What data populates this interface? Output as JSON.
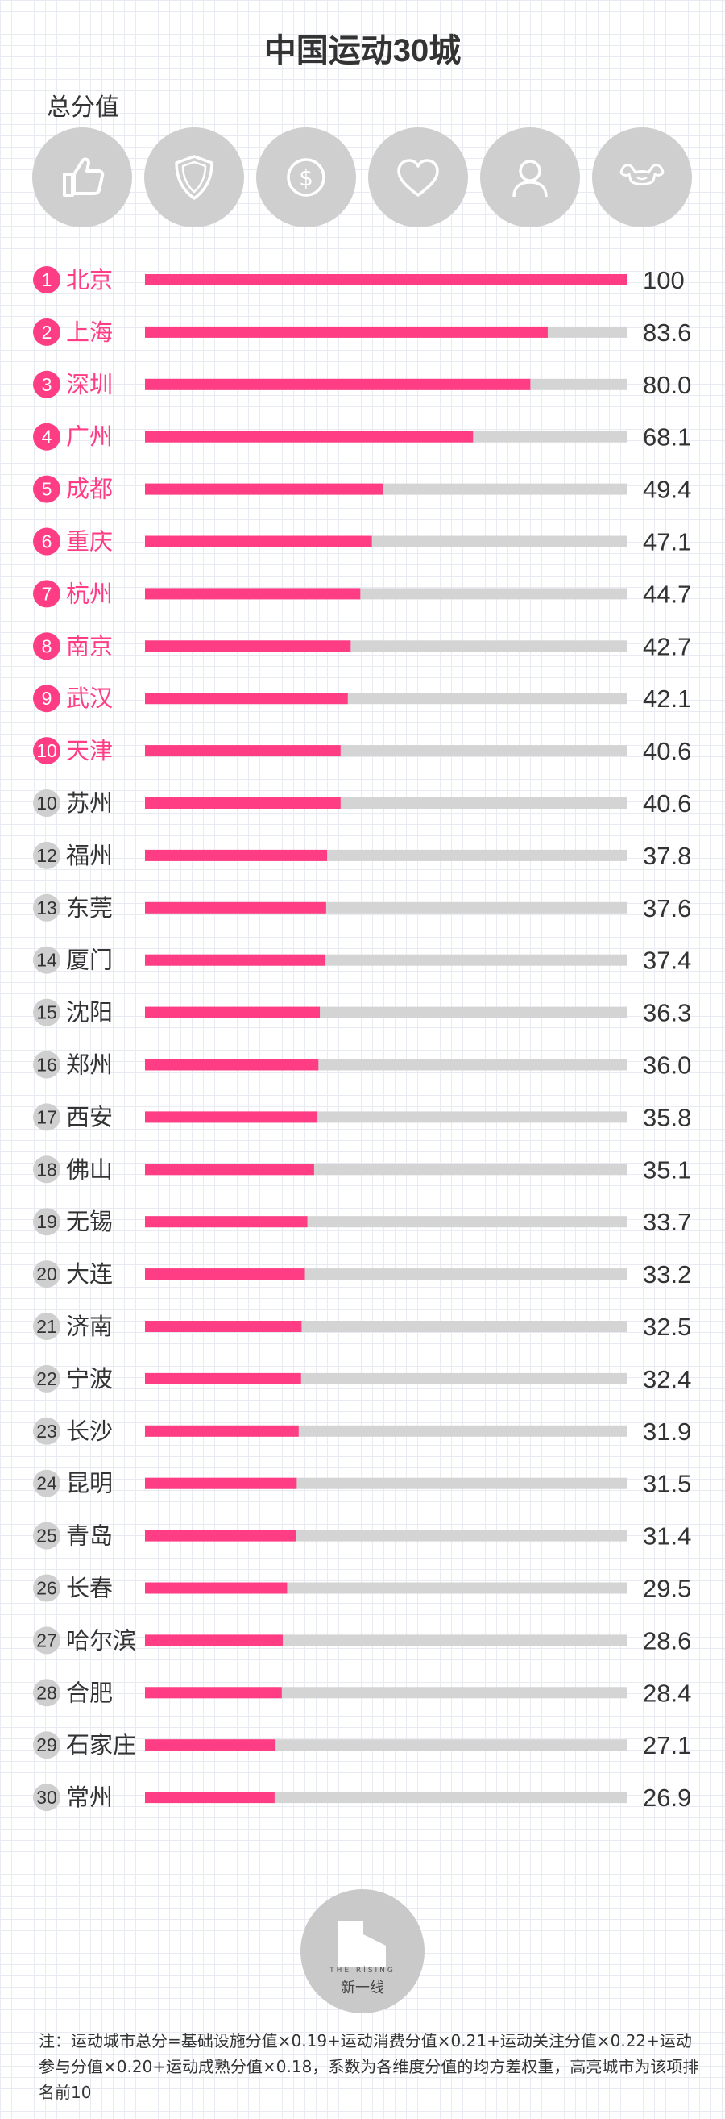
{
  "title": "中国运动30城",
  "subtitle": "总分值",
  "tabs": [
    {
      "name": "thumbs-up-icon",
      "active": true
    },
    {
      "name": "shield-icon",
      "active": false
    },
    {
      "name": "dollar-icon",
      "active": false
    },
    {
      "name": "heart-icon",
      "active": false
    },
    {
      "name": "person-icon",
      "active": false
    },
    {
      "name": "muscle-icon",
      "active": false
    }
  ],
  "colors": {
    "accent": "#ff3d84",
    "track": "#d4d4d4",
    "muted": "#cfcfcf",
    "highlight_text": "#ff3d84",
    "normal_text": "#333333"
  },
  "chart_data": {
    "type": "bar",
    "orientation": "horizontal",
    "xlim": [
      0,
      100
    ],
    "ranks": [
      "1",
      "2",
      "3",
      "4",
      "5",
      "6",
      "7",
      "8",
      "9",
      "10",
      "10",
      "12",
      "13",
      "14",
      "15",
      "16",
      "17",
      "18",
      "19",
      "20",
      "21",
      "22",
      "23",
      "24",
      "25",
      "26",
      "27",
      "28",
      "29",
      "30"
    ],
    "categories": [
      "北京",
      "上海",
      "深圳",
      "广州",
      "成都",
      "重庆",
      "杭州",
      "南京",
      "武汉",
      "天津",
      "苏州",
      "福州",
      "东莞",
      "厦门",
      "沈阳",
      "郑州",
      "西安",
      "佛山",
      "无锡",
      "大连",
      "济南",
      "宁波",
      "长沙",
      "昆明",
      "青岛",
      "长春",
      "哈尔滨",
      "合肥",
      "石家庄",
      "常州"
    ],
    "labels": [
      "100",
      "83.6",
      "80.0",
      "68.1",
      "49.4",
      "47.1",
      "44.7",
      "42.7",
      "42.1",
      "40.6",
      "40.6",
      "37.8",
      "37.6",
      "37.4",
      "36.3",
      "36.0",
      "35.8",
      "35.1",
      "33.7",
      "33.2",
      "32.5",
      "32.4",
      "31.9",
      "31.5",
      "31.4",
      "29.5",
      "28.6",
      "28.4",
      "27.1",
      "26.9"
    ],
    "values": [
      100,
      83.6,
      80.0,
      68.1,
      49.4,
      47.1,
      44.7,
      42.7,
      42.1,
      40.6,
      40.6,
      37.8,
      37.6,
      37.4,
      36.3,
      36.0,
      35.8,
      35.1,
      33.7,
      33.2,
      32.5,
      32.4,
      31.9,
      31.5,
      31.4,
      29.5,
      28.6,
      28.4,
      27.1,
      26.9
    ],
    "highlighted_count": 10
  },
  "logo": {
    "sub": "THE RISING",
    "text": "新一线"
  },
  "footnote": "注：运动城市总分=基础设施分值×0.19+运动消费分值×0.21+运动关注分值×0.22+运动参与分值×0.20+运动成熟分值×0.18，系数为各维度分值的均方差权重，高亮城市为该项排名前10"
}
